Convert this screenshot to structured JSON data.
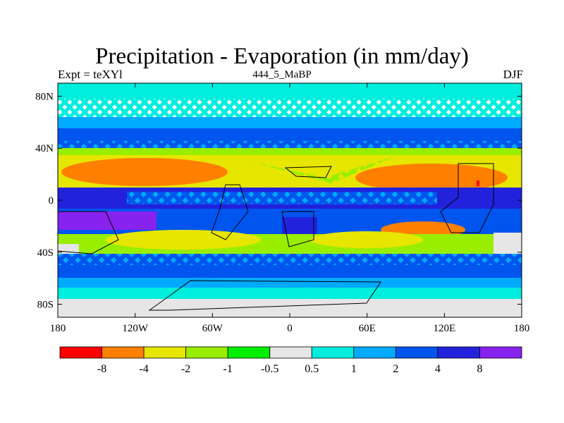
{
  "title": "Precipitation - Evaporation (in mm/day)",
  "subtitle_left": "Expt = teXYl",
  "subtitle_center": "444_5_MaBP",
  "subtitle_right": "DJF",
  "map": {
    "lon_range": [
      -180,
      180
    ],
    "lat_range": [
      -90,
      90
    ],
    "lat_ticks": [
      {
        "value": 80,
        "label": "80N"
      },
      {
        "value": 40,
        "label": "40N"
      },
      {
        "value": 0,
        "label": "0"
      },
      {
        "value": -40,
        "label": "40S"
      },
      {
        "value": -80,
        "label": "80S"
      }
    ],
    "lon_ticks": [
      {
        "value": -180,
        "label": "180"
      },
      {
        "value": -120,
        "label": "120W"
      },
      {
        "value": -60,
        "label": "60W"
      },
      {
        "value": 0,
        "label": "0"
      },
      {
        "value": 60,
        "label": "60E"
      },
      {
        "value": 120,
        "label": "120E"
      },
      {
        "value": 180,
        "label": "180"
      }
    ]
  },
  "colorbar": {
    "colors": [
      "#ff0000",
      "#ff8000",
      "#e6e600",
      "#99ee00",
      "#00ee00",
      "#e6e6e6",
      "#00eedd",
      "#00aaff",
      "#0055ee",
      "#2222dd",
      "#8822ee"
    ],
    "labels": [
      "-8",
      "-4",
      "-2",
      "-1",
      "-0.5",
      "0.5",
      "1",
      "2",
      "4",
      "8"
    ]
  },
  "colors": {
    "dry_strong": "#ff8000",
    "dry_moderate": "#e6e600",
    "dry_light": "#99ee00",
    "dry_weak": "#00ee00",
    "neutral": "#e6e6e6",
    "wet_weak": "#00eedd",
    "wet_light": "#00aaff",
    "wet_moderate": "#0055ee",
    "wet_strong": "#2222dd",
    "wet_extreme": "#8822ee",
    "dry_extreme": "#ff0000"
  }
}
